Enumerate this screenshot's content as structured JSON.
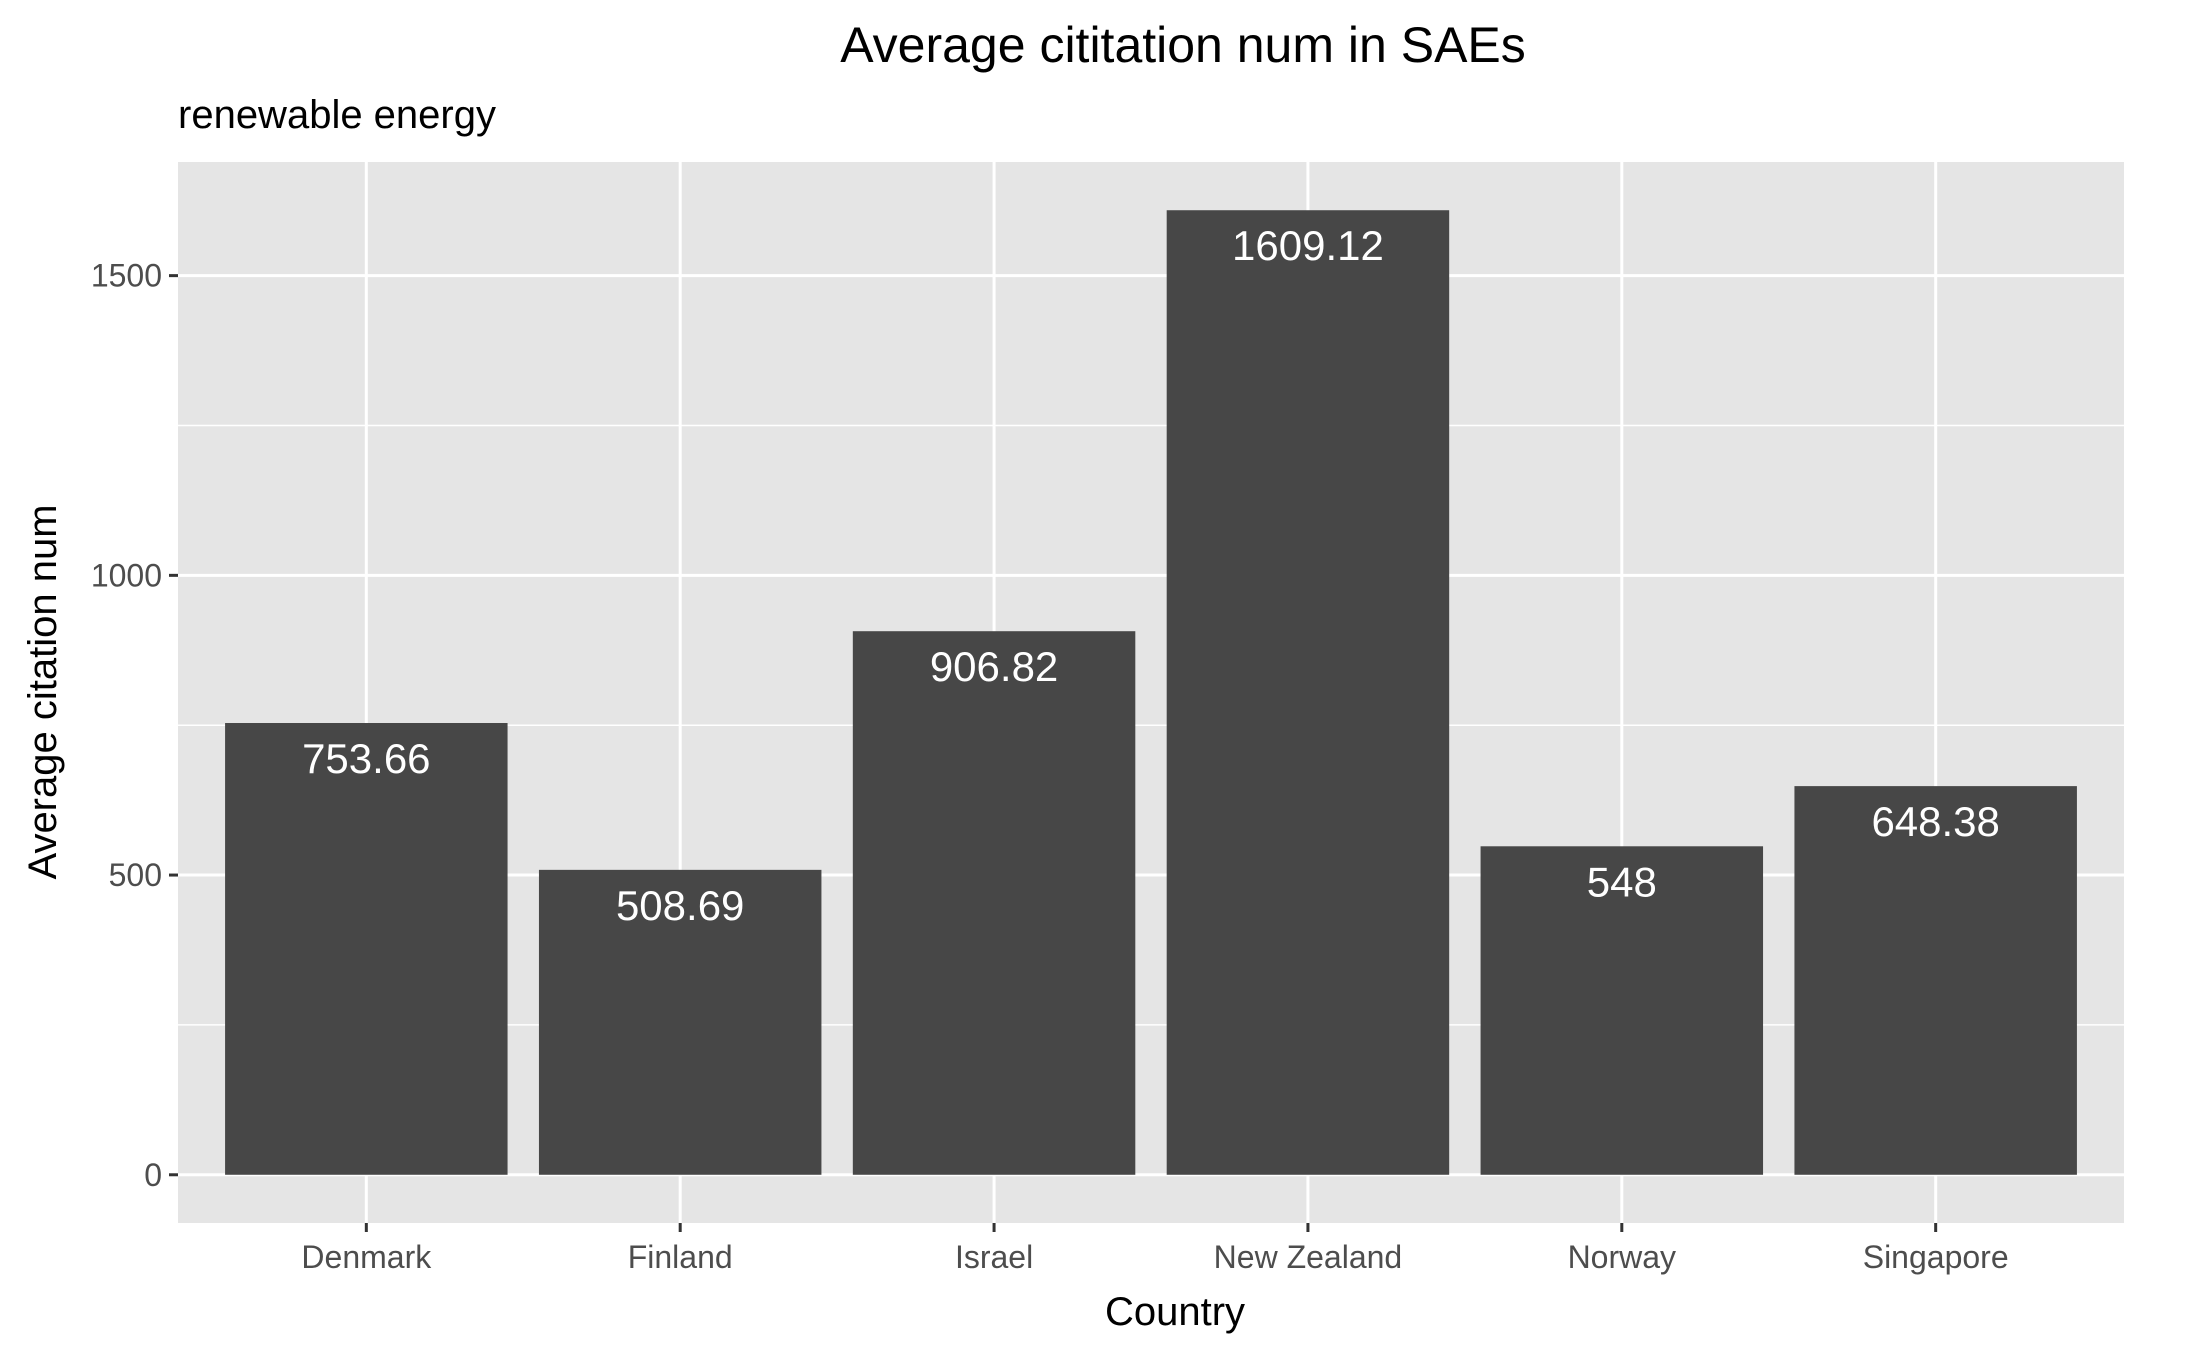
{
  "chart_data": {
    "type": "bar",
    "title": "Average cititation num in SAEs",
    "subtitle": "renewable energy",
    "xlabel": "Country",
    "ylabel": "Average citation num",
    "categories": [
      "Denmark",
      "Finland",
      "Israel",
      "New Zealand",
      "Norway",
      "Singapore"
    ],
    "values": [
      753.66,
      508.69,
      906.82,
      1609.12,
      548,
      648.38
    ],
    "value_labels": [
      "753.66",
      "508.69",
      "906.82",
      "1609.12",
      "548",
      "648.38"
    ],
    "ylim": [
      -80.46,
      1689.58
    ],
    "yticks": [
      0,
      500,
      1000,
      1500
    ],
    "ytick_labels": [
      "0",
      "500",
      "1000",
      "1500"
    ],
    "grid": true,
    "legend": "none",
    "colors": {
      "bar": "#474747",
      "panel": "#e5e5e5",
      "grid": "#ffffff",
      "data_label": "#ffffff"
    }
  }
}
